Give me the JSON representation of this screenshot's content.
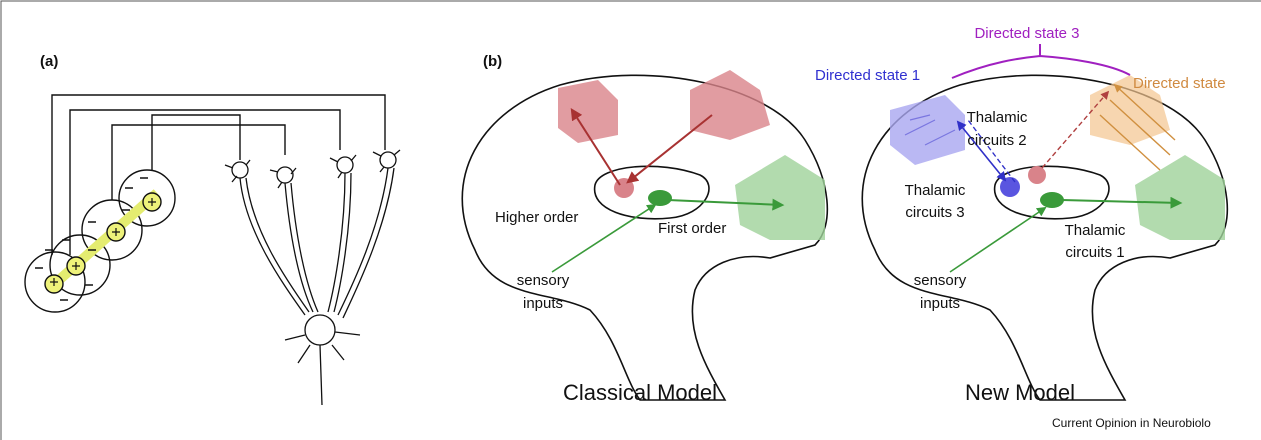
{
  "panel_a": {
    "label": "(a)"
  },
  "panel_b": {
    "label": "(b)",
    "classical": {
      "title": "Classical Model",
      "higher_order": "Higher order",
      "first_order": "First order",
      "sensory": [
        "sensory",
        "inputs"
      ]
    },
    "new": {
      "title": "New Model",
      "directed_state_3": "Directed state 3",
      "directed_state_1": "Directed state 1",
      "directed_state_2": "Directed state",
      "circuits_2": [
        "Thalamic",
        "circuits 2"
      ],
      "circuits_3": [
        "Thalamic",
        "circuits 3"
      ],
      "circuits_1": [
        "Thalamic",
        "circuits 1"
      ],
      "sensory": [
        "sensory",
        "inputs"
      ]
    }
  },
  "footer": "Current Opinion in Neurobiolo"
}
